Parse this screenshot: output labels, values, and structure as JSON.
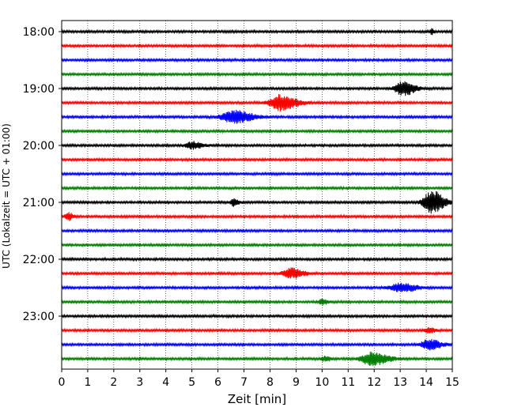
{
  "chart_data": {
    "type": "line",
    "title": "",
    "xlabel": "Zeit  [min]",
    "ylabel": "UTC (Lokalzeit = UTC + 01:00)",
    "xlim": [
      0,
      15
    ],
    "x_ticks": [
      "0",
      "1",
      "2",
      "3",
      "4",
      "5",
      "6",
      "7",
      "8",
      "9",
      "10",
      "11",
      "12",
      "13",
      "14",
      "15"
    ],
    "y_ticks": [
      "18:00",
      "19:00",
      "20:00",
      "21:00",
      "22:00",
      "23:00"
    ],
    "grid": "vertical-dotted",
    "legend": "none",
    "trace_colors": [
      "#000000",
      "#ff0000",
      "#0000ff",
      "#008000"
    ],
    "rows": [
      {
        "start": "18:00",
        "color": "#000000",
        "bursts": [
          {
            "t": 14.2,
            "amp": 0.5,
            "width": 0.1
          }
        ]
      },
      {
        "start": "18:15",
        "color": "#ff0000",
        "bursts": []
      },
      {
        "start": "18:30",
        "color": "#0000ff",
        "bursts": []
      },
      {
        "start": "18:45",
        "color": "#008000",
        "bursts": []
      },
      {
        "start": "19:00",
        "color": "#000000",
        "bursts": [
          {
            "t": 13.1,
            "amp": 1.0,
            "width": 0.6
          }
        ]
      },
      {
        "start": "19:15",
        "color": "#ff0000",
        "bursts": [
          {
            "t": 8.4,
            "amp": 1.1,
            "width": 0.8
          }
        ]
      },
      {
        "start": "19:30",
        "color": "#0000ff",
        "bursts": [
          {
            "t": 6.6,
            "amp": 0.9,
            "width": 0.9
          }
        ]
      },
      {
        "start": "19:45",
        "color": "#008000",
        "bursts": []
      },
      {
        "start": "20:00",
        "color": "#000000",
        "bursts": [
          {
            "t": 5.0,
            "amp": 0.5,
            "width": 0.5
          }
        ]
      },
      {
        "start": "20:15",
        "color": "#ff0000",
        "bursts": []
      },
      {
        "start": "20:30",
        "color": "#0000ff",
        "bursts": []
      },
      {
        "start": "20:45",
        "color": "#008000",
        "bursts": []
      },
      {
        "start": "21:00",
        "color": "#000000",
        "bursts": [
          {
            "t": 6.6,
            "amp": 0.5,
            "width": 0.25
          },
          {
            "t": 14.2,
            "amp": 1.6,
            "width": 0.6
          }
        ]
      },
      {
        "start": "21:15",
        "color": "#ff0000",
        "bursts": [
          {
            "t": 0.25,
            "amp": 0.5,
            "width": 0.25
          }
        ]
      },
      {
        "start": "21:30",
        "color": "#0000ff",
        "bursts": []
      },
      {
        "start": "21:45",
        "color": "#008000",
        "bursts": []
      },
      {
        "start": "22:00",
        "color": "#000000",
        "bursts": []
      },
      {
        "start": "22:15",
        "color": "#ff0000",
        "bursts": [
          {
            "t": 8.8,
            "amp": 0.7,
            "width": 0.6
          }
        ]
      },
      {
        "start": "22:30",
        "color": "#0000ff",
        "bursts": [
          {
            "t": 13.0,
            "amp": 0.6,
            "width": 0.8
          }
        ]
      },
      {
        "start": "22:45",
        "color": "#008000",
        "bursts": [
          {
            "t": 10.0,
            "amp": 0.35,
            "width": 0.3
          }
        ]
      },
      {
        "start": "23:00",
        "color": "#000000",
        "bursts": []
      },
      {
        "start": "23:15",
        "color": "#ff0000",
        "bursts": [
          {
            "t": 14.1,
            "amp": 0.35,
            "width": 0.3
          }
        ]
      },
      {
        "start": "23:30",
        "color": "#0000ff",
        "bursts": [
          {
            "t": 14.1,
            "amp": 0.7,
            "width": 0.6
          }
        ]
      },
      {
        "start": "23:45",
        "color": "#008000",
        "bursts": [
          {
            "t": 11.9,
            "amp": 0.9,
            "width": 0.8
          },
          {
            "t": 10.1,
            "amp": 0.3,
            "width": 0.3
          }
        ]
      }
    ]
  }
}
